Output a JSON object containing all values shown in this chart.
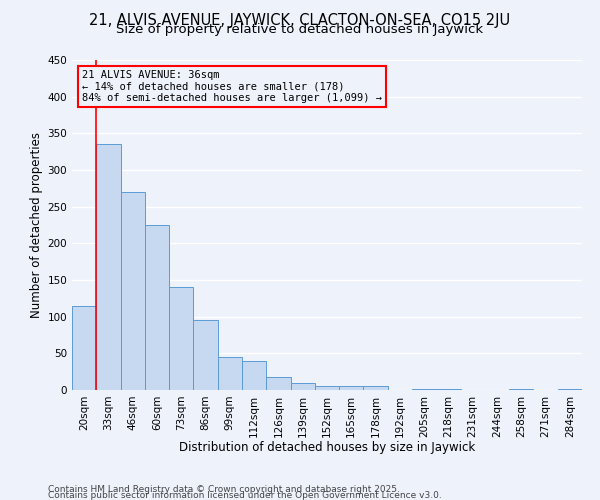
{
  "title": "21, ALVIS AVENUE, JAYWICK, CLACTON-ON-SEA, CO15 2JU",
  "subtitle": "Size of property relative to detached houses in Jaywick",
  "xlabel": "Distribution of detached houses by size in Jaywick",
  "ylabel": "Number of detached properties",
  "categories": [
    "20sqm",
    "33sqm",
    "46sqm",
    "60sqm",
    "73sqm",
    "86sqm",
    "99sqm",
    "112sqm",
    "126sqm",
    "139sqm",
    "152sqm",
    "165sqm",
    "178sqm",
    "192sqm",
    "205sqm",
    "218sqm",
    "231sqm",
    "244sqm",
    "258sqm",
    "271sqm",
    "284sqm"
  ],
  "bar_heights": [
    115,
    335,
    270,
    225,
    140,
    95,
    45,
    40,
    18,
    10,
    5,
    5,
    6,
    0,
    1,
    1,
    0,
    0,
    1,
    0,
    1
  ],
  "bar_color": "#c6d9f0",
  "bar_edge_color": "#5b9bd5",
  "red_line_x": 1,
  "annotation_text": "21 ALVIS AVENUE: 36sqm\n← 14% of detached houses are smaller (178)\n84% of semi-detached houses are larger (1,099) →",
  "annotation_box_edge_color": "red",
  "ylim": [
    0,
    450
  ],
  "yticks": [
    0,
    50,
    100,
    150,
    200,
    250,
    300,
    350,
    400,
    450
  ],
  "footer_line1": "Contains HM Land Registry data © Crown copyright and database right 2025.",
  "footer_line2": "Contains public sector information licensed under the Open Government Licence v3.0.",
  "bg_color": "#eef2fb",
  "grid_color": "#ffffff",
  "title_fontsize": 10.5,
  "subtitle_fontsize": 9.5,
  "axis_label_fontsize": 8.5,
  "tick_fontsize": 7.5,
  "annotation_fontsize": 7.5,
  "footer_fontsize": 6.5
}
